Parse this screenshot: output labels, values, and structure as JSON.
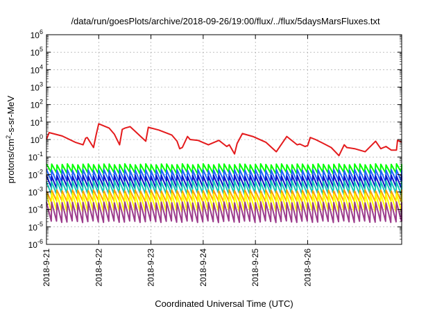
{
  "chart_data": {
    "type": "line",
    "title": "/data/run/goesPlots/archive/2018-09-26/19:00/flux/../flux/5daysMarsFluxes.txt",
    "xlabel": "Coordinated Universal Time (UTC)",
    "ylabel": {
      "prefix": "protons/cm",
      "sup": "2",
      "suffix": "-s-sr-MeV"
    },
    "yscale": "log",
    "ylim": [
      1e-06,
      1000000.0
    ],
    "xlim": [
      0,
      6.8
    ],
    "y_ticks": [
      {
        "exp": "-6",
        "value": -6
      },
      {
        "exp": "-5",
        "value": -5
      },
      {
        "exp": "-4",
        "value": -4
      },
      {
        "exp": "-3",
        "value": -3
      },
      {
        "exp": "-2",
        "value": -2
      },
      {
        "exp": "-1",
        "value": -1
      },
      {
        "exp": "0",
        "value": 0
      },
      {
        "exp": "1",
        "value": 1
      },
      {
        "exp": "2",
        "value": 2
      },
      {
        "exp": "3",
        "value": 3
      },
      {
        "exp": "4",
        "value": 4
      },
      {
        "exp": "5",
        "value": 5
      },
      {
        "exp": "6",
        "value": 6
      }
    ],
    "x_ticks": [
      {
        "label": "2018-9-21",
        "value": 0
      },
      {
        "label": "2018-9-22",
        "value": 1
      },
      {
        "label": "2018-9-23",
        "value": 2
      },
      {
        "label": "2018-9-24",
        "value": 3
      },
      {
        "label": "2018-9-25",
        "value": 4
      },
      {
        "label": "2018-9-26",
        "value": 5
      }
    ],
    "grid": true,
    "series": [
      {
        "color": "#e41a1c",
        "pattern": "decay",
        "x": [
          0,
          0.05,
          0.3,
          0.55,
          0.7,
          0.75,
          0.78,
          0.9,
          0.95,
          1.0,
          1.2,
          1.3,
          1.4,
          1.45,
          1.5,
          1.6,
          1.9,
          1.95,
          2.15,
          2.4,
          2.5,
          2.55,
          2.6,
          2.7,
          2.75,
          2.9,
          3.1,
          3.3,
          3.45,
          3.5,
          3.6,
          3.65,
          3.75,
          3.95,
          4.2,
          4.4,
          4.6,
          4.8,
          4.85,
          4.95,
          5.0,
          5.05,
          5.15,
          5.3,
          5.45,
          5.6,
          5.7,
          5.75,
          5.9,
          6.1,
          6.3,
          6.4,
          6.5,
          6.6,
          6.7,
          6.72,
          6.8
        ],
        "y": [
          1.0,
          2.5,
          1.6,
          0.7,
          0.5,
          1.2,
          1.3,
          0.35,
          1.8,
          8.0,
          4.5,
          2.0,
          0.5,
          3.8,
          4.5,
          5.5,
          0.8,
          5.0,
          3.5,
          1.8,
          0.8,
          0.3,
          0.35,
          1.5,
          1.0,
          0.9,
          0.5,
          0.9,
          0.4,
          0.5,
          0.15,
          0.6,
          2.2,
          1.5,
          0.7,
          0.2,
          1.5,
          0.5,
          0.55,
          0.4,
          0.45,
          1.3,
          1.0,
          0.6,
          0.35,
          0.12,
          0.5,
          0.35,
          0.3,
          0.2,
          0.8,
          0.3,
          0.4,
          0.25,
          0.25,
          0.9,
          0.7
        ]
      },
      {
        "color": "#00ff00",
        "pattern": "saw",
        "period": 0.1,
        "low": 0.012,
        "high": 0.038
      },
      {
        "color": "#1e64ff",
        "pattern": "saw",
        "period": 0.1,
        "low": 0.004,
        "high": 0.018
      },
      {
        "color": "#0a14c8",
        "pattern": "saw",
        "period": 0.1,
        "low": 0.0018,
        "high": 0.0085
      },
      {
        "color": "#14c8b4",
        "pattern": "saw",
        "period": 0.1,
        "low": 0.0008,
        "high": 0.004
      },
      {
        "color": "#ffa000",
        "pattern": "saw",
        "period": 0.1,
        "low": 0.0003,
        "high": 0.0012
      },
      {
        "color": "#ffff00",
        "pattern": "saw",
        "period": 0.1,
        "low": 8e-05,
        "high": 0.0008
      },
      {
        "color": "#9c3c8c",
        "pattern": "saw",
        "period": 0.1,
        "low": 2e-05,
        "high": 0.00025
      }
    ]
  }
}
